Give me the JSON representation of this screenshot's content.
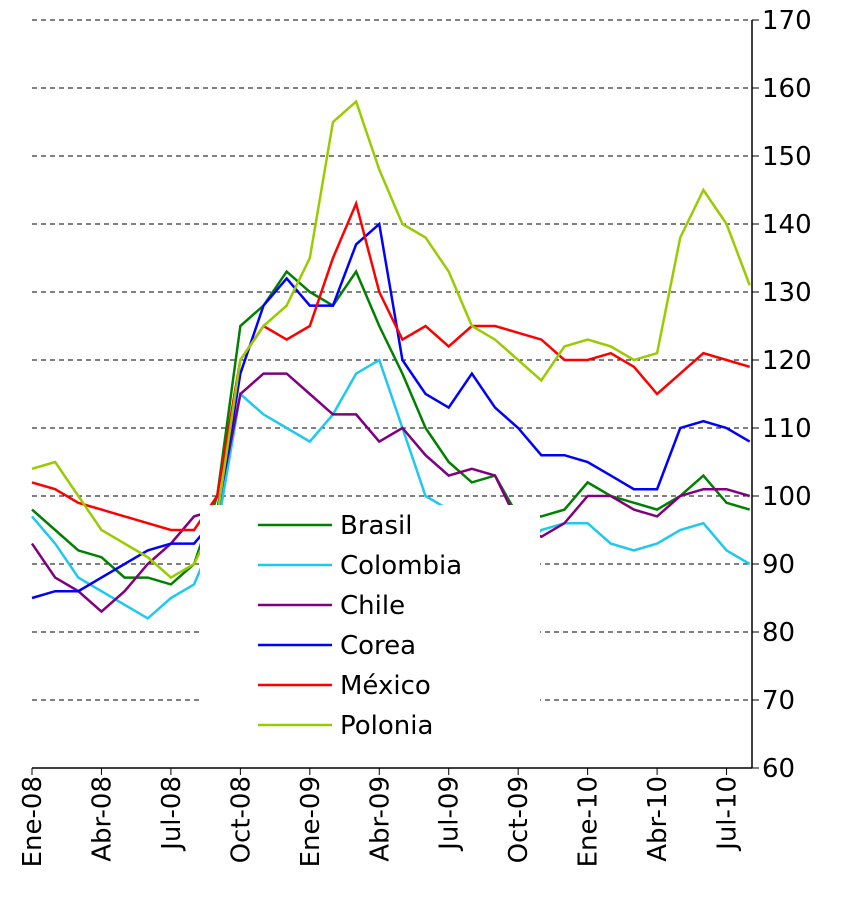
{
  "chart_data": {
    "type": "line",
    "categories": [
      "Ene-08",
      null,
      null,
      "Abr-08",
      null,
      null,
      "Jul-08",
      null,
      null,
      "Oct-08",
      null,
      null,
      "Ene-09",
      null,
      null,
      "Abr-09",
      null,
      null,
      "Jul-09",
      null,
      null,
      "Oct-09",
      null,
      null,
      "Ene-10",
      null,
      null,
      "Abr-10",
      null,
      null,
      "Jul-10",
      null
    ],
    "series": [
      {
        "name": "Brasil",
        "color": "#008000",
        "values": [
          98,
          95,
          92,
          91,
          88,
          88,
          87,
          90,
          100,
          125,
          128,
          133,
          130,
          128,
          133,
          125,
          118,
          110,
          105,
          102,
          103,
          97,
          97,
          98,
          102,
          100,
          99,
          98,
          100,
          103,
          99,
          98
        ]
      },
      {
        "name": "Colombia",
        "color": "#1ec8ef",
        "values": [
          97,
          93,
          88,
          86,
          84,
          82,
          85,
          87,
          95,
          115,
          112,
          110,
          108,
          112,
          118,
          120,
          110,
          100,
          98,
          98,
          97,
          92,
          95,
          96,
          96,
          93,
          92,
          93,
          95,
          96,
          92,
          90
        ]
      },
      {
        "name": "Chile",
        "color": "#800080",
        "values": [
          93,
          88,
          86,
          83,
          86,
          90,
          93,
          97,
          98,
          115,
          118,
          118,
          115,
          112,
          112,
          108,
          110,
          106,
          103,
          104,
          103,
          96,
          94,
          96,
          100,
          100,
          98,
          97,
          100,
          101,
          101,
          100
        ]
      },
      {
        "name": "Corea",
        "color": "#0000ff",
        "values": [
          85,
          86,
          86,
          88,
          90,
          92,
          93,
          93,
          97,
          118,
          128,
          132,
          128,
          128,
          137,
          140,
          120,
          115,
          113,
          118,
          113,
          110,
          106,
          106,
          105,
          103,
          101,
          101,
          110,
          111,
          110,
          108
        ]
      },
      {
        "name": "México",
        "color": "#ff0000",
        "values": [
          102,
          101,
          99,
          98,
          97,
          96,
          95,
          95,
          100,
          120,
          125,
          123,
          125,
          135,
          143,
          130,
          123,
          125,
          122,
          125,
          125,
          124,
          123,
          120,
          120,
          121,
          119,
          115,
          118,
          121,
          120,
          119
        ]
      },
      {
        "name": "Polonia",
        "color": "#99cc00",
        "values": [
          104,
          105,
          100,
          95,
          93,
          91,
          88,
          90,
          97,
          120,
          125,
          128,
          135,
          155,
          158,
          148,
          140,
          138,
          133,
          125,
          123,
          120,
          117,
          122,
          123,
          122,
          120,
          121,
          138,
          145,
          140,
          131
        ]
      }
    ],
    "ylim": [
      60,
      170
    ],
    "yticks": [
      60,
      70,
      80,
      90,
      100,
      110,
      120,
      130,
      140,
      150,
      160,
      170
    ],
    "grid": true
  }
}
